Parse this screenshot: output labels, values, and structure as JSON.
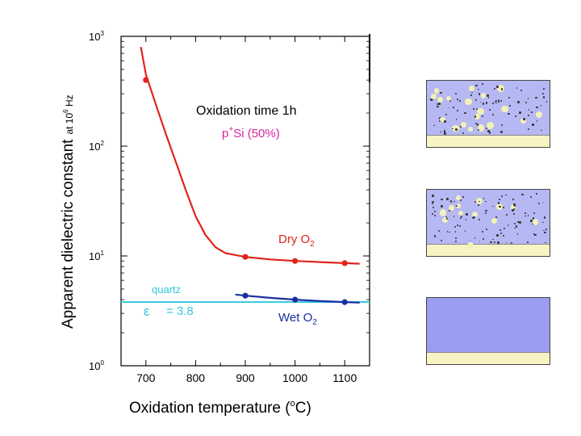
{
  "chart_data": {
    "type": "line",
    "yscale": "log",
    "xlim": [
      650,
      1150
    ],
    "ylim": [
      1,
      1000
    ],
    "x_ticks": [
      700,
      800,
      900,
      1000,
      1100
    ],
    "y_ticks": [
      {
        "value": 1,
        "mantissa": "10",
        "exp": "0"
      },
      {
        "value": 10,
        "mantissa": "10",
        "exp": "1"
      },
      {
        "value": 100,
        "mantissa": "10",
        "exp": "2"
      },
      {
        "value": 1000,
        "mantissa": "10",
        "exp": "3"
      }
    ],
    "xlabel": {
      "text": "Oxidation temperature (",
      "sup": "o",
      "tail": "C)"
    },
    "ylabel": {
      "main": "Apparent dielectric constant",
      "sub": "at 10",
      "sup": "6",
      "tail": " Hz"
    },
    "annotation_title": "Oxidation time  1h",
    "annotation_sample": {
      "pre": "p",
      "sup": "+",
      "post": "Si  (50%)"
    },
    "series": [
      {
        "name": "Dry O2",
        "label": "Dry O",
        "label_sub": "2",
        "color": "#e0241c",
        "points": [
          {
            "x": 700,
            "y": 400
          },
          {
            "x": 900,
            "y": 9.8
          },
          {
            "x": 1000,
            "y": 9.0
          },
          {
            "x": 1100,
            "y": 8.6
          }
        ],
        "curve": [
          [
            690,
            800
          ],
          [
            700,
            450
          ],
          [
            720,
            240
          ],
          [
            740,
            130
          ],
          [
            760,
            72
          ],
          [
            780,
            40
          ],
          [
            800,
            23
          ],
          [
            820,
            15.5
          ],
          [
            840,
            12
          ],
          [
            860,
            10.6
          ],
          [
            900,
            9.8
          ],
          [
            950,
            9.3
          ],
          [
            1000,
            9.0
          ],
          [
            1050,
            8.8
          ],
          [
            1100,
            8.6
          ],
          [
            1130,
            8.5
          ]
        ]
      },
      {
        "name": "Wet O2",
        "label": "Wet O",
        "label_sub": "2",
        "color": "#1a2fa0",
        "points": [
          {
            "x": 900,
            "y": 4.35
          },
          {
            "x": 1000,
            "y": 4.0
          },
          {
            "x": 1100,
            "y": 3.8
          }
        ],
        "curve": [
          [
            880,
            4.45
          ],
          [
            900,
            4.35
          ],
          [
            950,
            4.15
          ],
          [
            1000,
            4.0
          ],
          [
            1050,
            3.88
          ],
          [
            1100,
            3.8
          ],
          [
            1130,
            3.76
          ]
        ]
      }
    ],
    "reference": {
      "name": "quartz",
      "label": "quartz",
      "eps_symbol": "ε",
      "eps_text": "= 3.8",
      "value": 3.8,
      "color": "#35c7e0"
    }
  },
  "schematics": [
    {
      "name": "porous-film-large-pores",
      "film_color": "#b5b8f2",
      "substrate_color": "#f8f3c2"
    },
    {
      "name": "porous-film-small-pores",
      "film_color": "#b5b8f2",
      "substrate_color": "#f8f3c2"
    },
    {
      "name": "dense-film",
      "film_color": "#9b9ef0",
      "substrate_color": "#f8f3c2"
    }
  ]
}
